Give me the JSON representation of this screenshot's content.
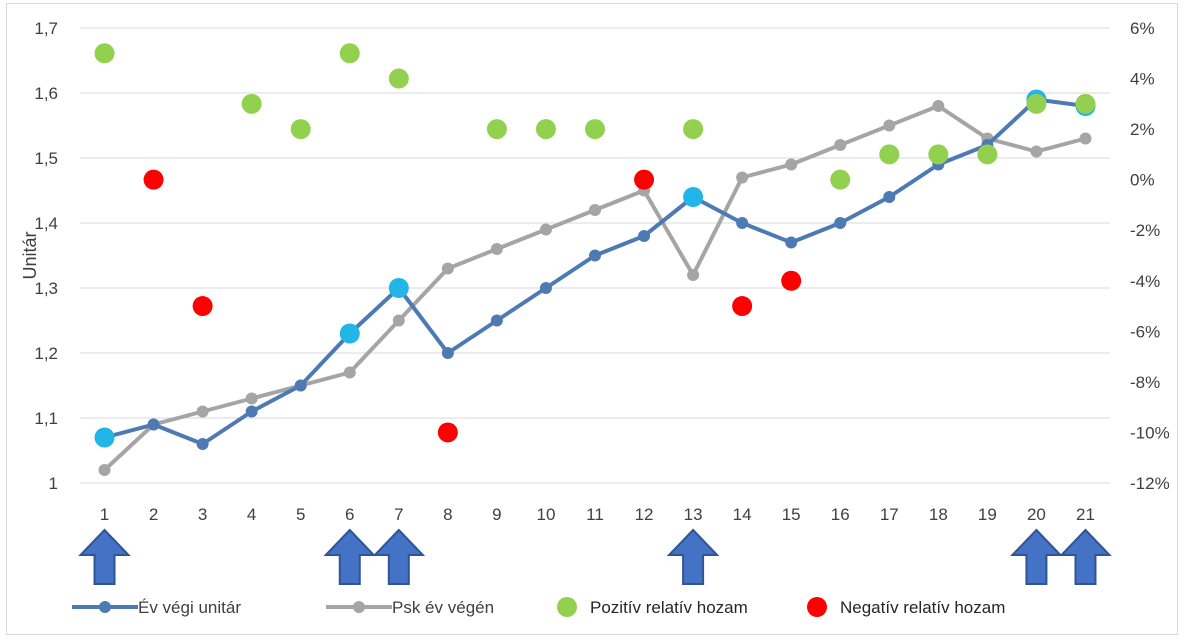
{
  "chart_data": {
    "type": "line",
    "categories": [
      "1",
      "2",
      "3",
      "4",
      "5",
      "6",
      "7",
      "8",
      "9",
      "10",
      "11",
      "12",
      "13",
      "14",
      "15",
      "16",
      "17",
      "18",
      "19",
      "20",
      "21"
    ],
    "ylabel": "Unitár",
    "ylim": [
      1,
      1.7
    ],
    "yticks": [
      "1",
      "1,1",
      "1,2",
      "1,3",
      "1,4",
      "1,5",
      "1,6",
      "1,7"
    ],
    "y2lim": [
      -12,
      6
    ],
    "y2ticks": [
      "-12%",
      "-10%",
      "-8%",
      "-6%",
      "-4%",
      "-2%",
      "0%",
      "2%",
      "4%",
      "6%"
    ],
    "grid": "horizontal",
    "legend_position": "bottom",
    "series": [
      {
        "name": "Év végi unitár",
        "axis": "left",
        "color": "#4e7ab4",
        "values": [
          1.07,
          1.09,
          1.06,
          1.11,
          1.15,
          1.23,
          1.3,
          1.2,
          1.25,
          1.3,
          1.35,
          1.38,
          1.44,
          1.4,
          1.37,
          1.4,
          1.44,
          1.49,
          1.52,
          1.59,
          1.58
        ],
        "highlight_indices": [
          0,
          5,
          6,
          12,
          19,
          20
        ],
        "highlight_color": "#21b5e8"
      },
      {
        "name": "Psk év végén",
        "axis": "left",
        "color": "#a5a5a5",
        "values": [
          1.02,
          1.09,
          1.11,
          1.13,
          1.15,
          1.17,
          1.25,
          1.33,
          1.36,
          1.39,
          1.42,
          1.45,
          1.32,
          1.47,
          1.49,
          1.52,
          1.55,
          1.58,
          1.53,
          1.51,
          1.53
        ]
      }
    ],
    "relative_returns": {
      "axis": "right",
      "positive": {
        "name": "Pozitív relatív hozam",
        "color": "#92d050",
        "points": [
          [
            1,
            5
          ],
          [
            4,
            3
          ],
          [
            5,
            2
          ],
          [
            6,
            5
          ],
          [
            7,
            4
          ],
          [
            9,
            2
          ],
          [
            10,
            2
          ],
          [
            11,
            2
          ],
          [
            13,
            2
          ],
          [
            16,
            0
          ],
          [
            17,
            1
          ],
          [
            18,
            1
          ],
          [
            19,
            1
          ],
          [
            20,
            3
          ],
          [
            21,
            3
          ]
        ]
      },
      "negative": {
        "name": "Negatív relatív hozam",
        "color": "#ff0000",
        "points": [
          [
            2,
            0
          ],
          [
            3,
            -5
          ],
          [
            8,
            -10
          ],
          [
            12,
            0
          ],
          [
            14,
            -5
          ],
          [
            15,
            -4
          ]
        ]
      }
    },
    "arrows_at": [
      1,
      6,
      7,
      13,
      20,
      21
    ],
    "arrow_color": "#4472c4"
  }
}
